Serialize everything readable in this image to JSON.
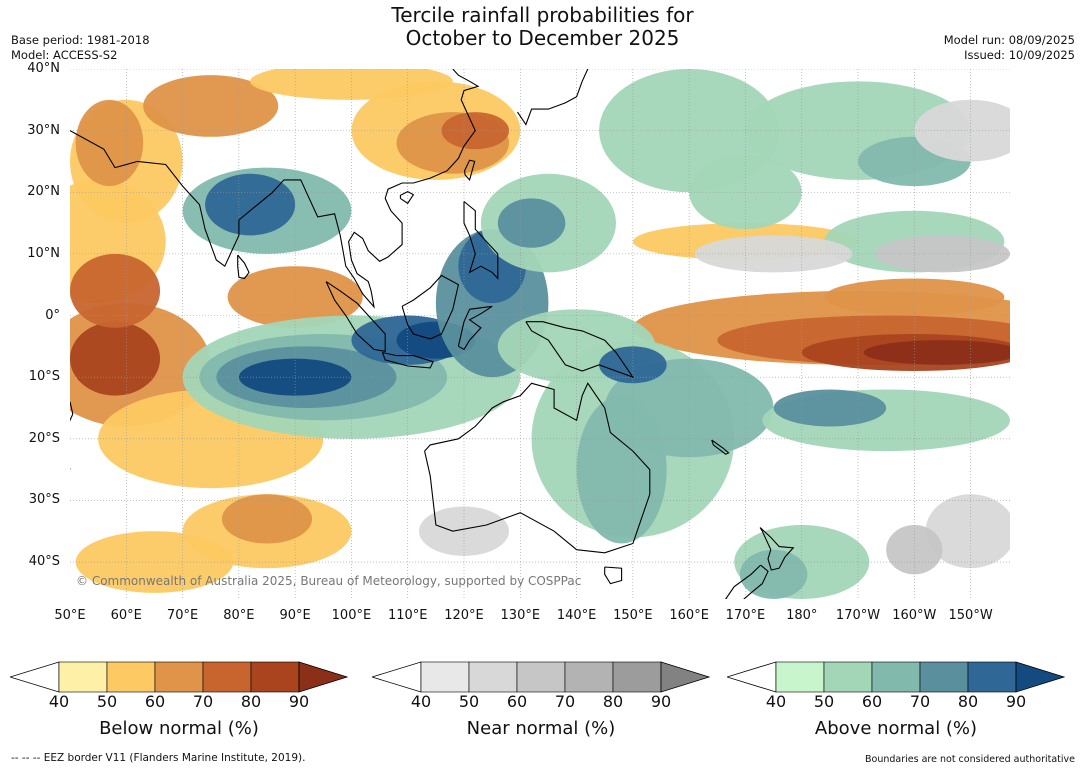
{
  "title_line1": "Tercile rainfall probabilities for",
  "title_line2": "October to December 2025",
  "meta": {
    "base_period": "Base period: 1981-2018",
    "model": "Model: ACCESS-S2",
    "model_run": "Model run: 08/09/2025",
    "issued": "Issued: 10/09/2025"
  },
  "map": {
    "copyright": "© Commonwealth of Australia 2025, Bureau of Meteorology, supported by COSPPac",
    "lat_labels": [
      "40°N",
      "30°N",
      "20°N",
      "10°N",
      "0°",
      "10°S",
      "20°S",
      "30°S",
      "40°S"
    ],
    "lon_labels": [
      "50°E",
      "60°E",
      "70°E",
      "80°E",
      "90°E",
      "100°E",
      "110°E",
      "120°E",
      "130°E",
      "140°E",
      "150°E",
      "160°E",
      "170°E",
      "180°",
      "170°W",
      "160°W",
      "150°W"
    ],
    "colors": {
      "below": [
        "#fff0a8",
        "#fdc962",
        "#df9449",
        "#c8652f",
        "#a9441f",
        "#8c2f19"
      ],
      "near": [
        "#e8e8e8",
        "#d8d8d8",
        "#c6c6c6",
        "#b3b3b3",
        "#9c9c9c",
        "#828282"
      ],
      "above": [
        "#c9f5cc",
        "#a3d6b7",
        "#82b9ad",
        "#5a909e",
        "#2f6797",
        "#134a80"
      ]
    }
  },
  "colorbars": [
    {
      "id": "below",
      "title": "Below normal (%)",
      "ticks": [
        "40",
        "50",
        "60",
        "70",
        "80",
        "90"
      ]
    },
    {
      "id": "near",
      "title": "Near normal (%)",
      "ticks": [
        "40",
        "50",
        "60",
        "70",
        "80",
        "90"
      ]
    },
    {
      "id": "above",
      "title": "Above normal (%)",
      "ticks": [
        "40",
        "50",
        "60",
        "70",
        "80",
        "90"
      ]
    }
  ],
  "footer": {
    "eez": "--  --  -- EEZ border V11 (Flanders Marine Institute, 2019).",
    "disclaimer": "Boundaries are not considered authoritative"
  }
}
